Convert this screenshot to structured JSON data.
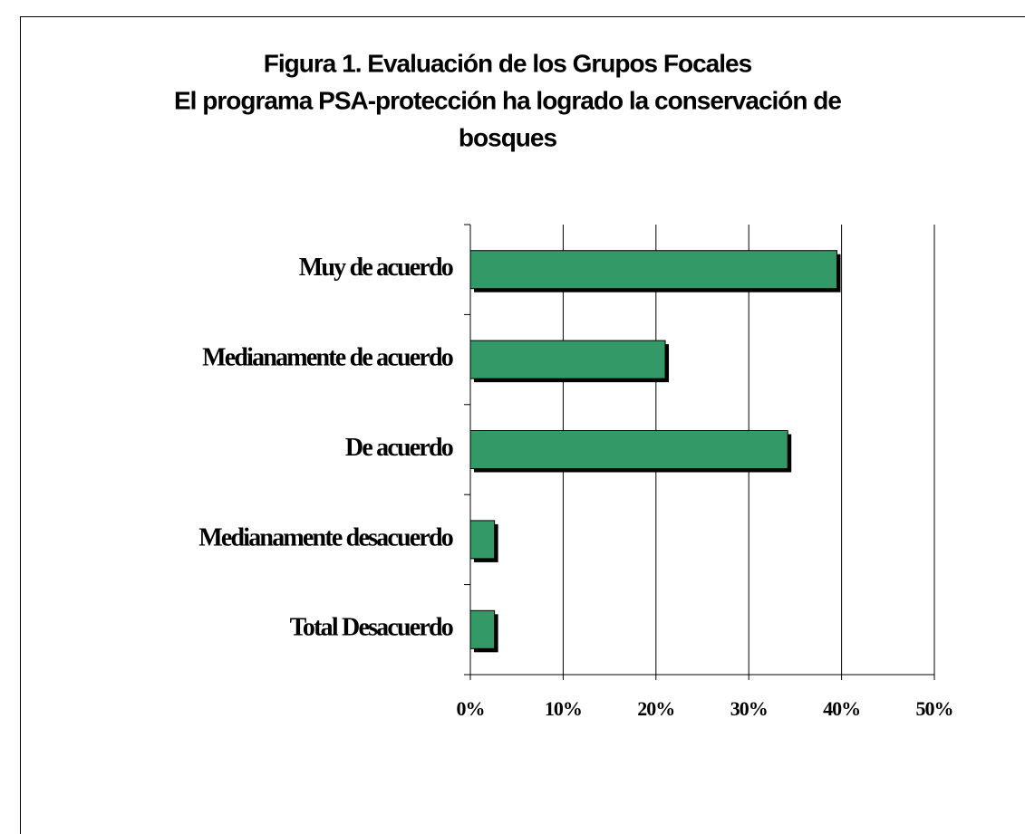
{
  "chart_data": {
    "type": "hbar",
    "title": [
      "Figura 1. Evaluación de los Grupos Focales",
      "El programa PSA-protección ha logrado la conservación de",
      "bosques"
    ],
    "categories": [
      "Muy de acuerdo",
      "Medianamente de acuerdo",
      "De acuerdo",
      "Medianamente desacuerdo",
      "Total Desacuerdo"
    ],
    "values": [
      39.5,
      21,
      34.2,
      2.6,
      2.6
    ],
    "color": "#339966",
    "xlim": [
      0,
      50
    ],
    "xticks": [
      {
        "value": 0,
        "label": "0%"
      },
      {
        "value": 10,
        "label": "10%"
      },
      {
        "value": 20,
        "label": "20%"
      },
      {
        "value": 30,
        "label": "30%"
      },
      {
        "value": 40,
        "label": "40%"
      },
      {
        "value": 50,
        "label": "50%"
      }
    ],
    "grid": true
  }
}
